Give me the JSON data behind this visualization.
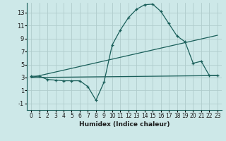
{
  "xlabel": "Humidex (Indice chaleur)",
  "ylabel": "",
  "bg_color": "#cde8e8",
  "line_color": "#1a5f5a",
  "grid_color": "#b0cccc",
  "yticks": [
    -1,
    1,
    3,
    5,
    7,
    9,
    11,
    13
  ],
  "xticks": [
    0,
    1,
    2,
    3,
    4,
    5,
    6,
    7,
    8,
    9,
    10,
    11,
    12,
    13,
    14,
    15,
    16,
    17,
    18,
    19,
    20,
    21,
    22,
    23
  ],
  "xlim": [
    -0.5,
    23.5
  ],
  "ylim": [
    -2.0,
    14.5
  ],
  "line1_x": [
    0,
    1,
    2,
    3,
    4,
    5,
    6,
    7,
    8,
    9,
    10,
    11,
    12,
    13,
    14,
    15,
    16,
    17,
    18,
    19,
    20,
    21,
    22,
    23
  ],
  "line1_y": [
    3.2,
    3.2,
    2.7,
    2.6,
    2.5,
    2.5,
    2.5,
    1.6,
    -0.5,
    2.3,
    8.0,
    10.3,
    12.2,
    13.5,
    14.2,
    14.3,
    13.2,
    11.3,
    9.4,
    8.5,
    5.2,
    5.5,
    3.3,
    3.3
  ],
  "line2_x": [
    0,
    23
  ],
  "line2_y": [
    3.0,
    9.5
  ],
  "line3_x": [
    0,
    23
  ],
  "line3_y": [
    3.0,
    3.3
  ]
}
